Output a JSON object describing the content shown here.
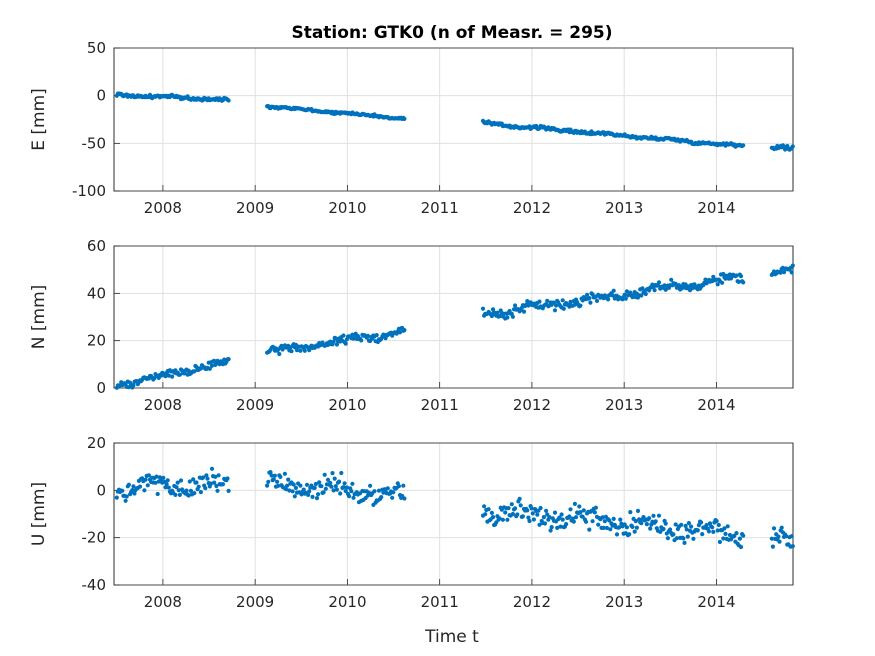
{
  "chart_data": {
    "type": "scatter",
    "title": "Station: GTK0 (n of Measr. = 295)",
    "xlabel": "Time t",
    "x_tick_labels": [
      "2008",
      "2009",
      "2010",
      "2011",
      "2012",
      "2013",
      "2014"
    ],
    "xlim": [
      2007.47,
      2014.83
    ],
    "marker_color": "#0072BD",
    "grid": true,
    "panels": [
      {
        "ylabel": "E [mm]",
        "ylim": [
          -100,
          50
        ],
        "y_tick_labels": [
          "50",
          "0",
          "-50",
          "-100"
        ],
        "segments": [
          {
            "x_start": 2007.5,
            "x_end": 2008.72,
            "y_start": 1,
            "y_end": -4.5,
            "wobble": 1.2
          },
          {
            "x_start": 2009.13,
            "x_end": 2010.62,
            "y_start": -11,
            "y_end": -24,
            "wobble": 0.9
          },
          {
            "x_start": 2011.47,
            "x_end": 2014.3,
            "y_start": -29,
            "y_end": -53,
            "wobble": 1.2
          },
          {
            "x_start": 2014.6,
            "x_end": 2014.83,
            "y_start": -53,
            "y_end": -56,
            "wobble": 1.5
          }
        ]
      },
      {
        "ylabel": "N [mm]",
        "ylim": [
          0,
          60
        ],
        "y_tick_labels": [
          "60",
          "40",
          "20",
          "0"
        ],
        "segments": [
          {
            "x_start": 2007.5,
            "x_end": 2008.72,
            "y_start": 1.0,
            "y_end": 11.0,
            "wobble": 1.2
          },
          {
            "x_start": 2009.13,
            "x_end": 2010.62,
            "y_start": 15.0,
            "y_end": 24.0,
            "wobble": 1.2
          },
          {
            "x_start": 2011.47,
            "x_end": 2014.3,
            "y_start": 31.0,
            "y_end": 47.0,
            "wobble": 1.5
          },
          {
            "x_start": 2014.6,
            "x_end": 2014.83,
            "y_start": 48.0,
            "y_end": 50.0,
            "wobble": 1.2
          }
        ]
      },
      {
        "ylabel": "U [mm]",
        "ylim": [
          -40,
          20
        ],
        "y_tick_labels": [
          "20",
          "0",
          "-20",
          "-40"
        ],
        "segments": [
          {
            "x_start": 2007.5,
            "x_end": 2008.72,
            "y_start": 1.5,
            "y_end": 3.0,
            "wobble": 3.0
          },
          {
            "x_start": 2009.13,
            "x_end": 2010.62,
            "y_start": 3.0,
            "y_end": -2.0,
            "wobble": 3.2
          },
          {
            "x_start": 2011.47,
            "x_end": 2014.3,
            "y_start": -8.0,
            "y_end": -19.0,
            "wobble": 3.0
          },
          {
            "x_start": 2014.6,
            "x_end": 2014.83,
            "y_start": -21.0,
            "y_end": -22.0,
            "wobble": 3.0
          }
        ]
      }
    ]
  }
}
